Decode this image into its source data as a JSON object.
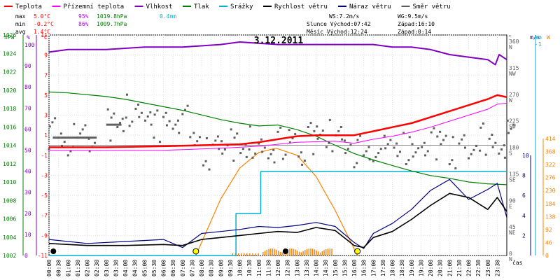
{
  "chart_data": {
    "type": "line",
    "title": "3.12.2011",
    "legend": [
      {
        "key": "temp",
        "label": "Teplota",
        "color": "#ff0000"
      },
      {
        "key": "feels",
        "label": "Přízemní teplota",
        "color": "#ff00ff"
      },
      {
        "key": "hum",
        "label": "Vlhkost",
        "color": "#8000c0"
      },
      {
        "key": "press",
        "label": "Tlak",
        "color": "#008000"
      },
      {
        "key": "rainacc",
        "label": "Srážky",
        "color": "#00b0d0"
      },
      {
        "key": "wind",
        "label": "Rychlost větru",
        "color": "#000000"
      },
      {
        "key": "gust",
        "label": "Náraz větru",
        "color": "#000080"
      },
      {
        "key": "dir",
        "label": "Směr větru",
        "color": "#606060"
      }
    ],
    "stats": {
      "max_label": "max",
      "max_temp": "5.0°C",
      "max_hum": "95%",
      "max_press": "1019.8hPa",
      "max_rain": "0.4mm",
      "min_label": "min",
      "min_temp": "-0.2°C",
      "min_hum": "86%",
      "min_press": "1009.7hPa",
      "avg_label": "avg",
      "avg_temp": "1.4°C",
      "ws": "WS:7.2m/s",
      "wg": "WG:9.5m/s",
      "sun_rise": "Slunce Východ:07:42",
      "sun_set": "Západ:16:10",
      "moon_rise": "Měsíc  Východ:12:24",
      "moon_set": "Západ:0:14"
    },
    "axis_units": {
      "hpa": "hPa",
      "pct": "%",
      "degc": "°C",
      "deg": "°",
      "ms": "m/s",
      "mm": "mm",
      "w": "W",
      "time": "čas"
    },
    "press_ticks": [
      1002,
      1004,
      1006,
      1008,
      1010,
      1012,
      1014,
      1016,
      1018,
      1020,
      1022,
      1024,
      1026
    ],
    "hum_ticks": [
      0,
      10,
      20,
      30,
      40,
      50,
      60,
      70,
      80,
      90,
      100
    ],
    "temp_ticks": [
      -11,
      -9,
      -7,
      -5,
      -3,
      -1,
      1,
      3,
      5,
      7,
      9,
      11
    ],
    "dir_ticks": [
      {
        "deg": 0,
        "v": "0",
        "c": "N"
      },
      {
        "deg": 45,
        "v": "45",
        "c": "NE"
      },
      {
        "deg": 90,
        "v": "90",
        "c": "E"
      },
      {
        "deg": 135,
        "v": "135",
        "c": "SE"
      },
      {
        "deg": 180,
        "v": "180",
        "c": "S"
      },
      {
        "deg": 225,
        "v": "225",
        "c": "SW"
      },
      {
        "deg": 270,
        "v": "270",
        "c": "W"
      },
      {
        "deg": 315,
        "v": "315",
        "c": "NW"
      },
      {
        "deg": 360,
        "v": "360",
        "c": "N"
      }
    ],
    "wind_ticks": [
      0,
      2,
      4,
      6,
      8,
      10
    ],
    "rain_ticks": [
      0,
      1
    ],
    "solar_ticks": [
      0,
      46,
      92,
      138,
      184,
      230,
      276,
      322,
      368,
      414
    ],
    "time_ticks": [
      "00:00",
      "00:30",
      "01:00",
      "01:30",
      "02:00",
      "02:30",
      "03:00",
      "03:30",
      "04:00",
      "04:30",
      "05:00",
      "05:30",
      "06:00",
      "06:30",
      "07:00",
      "07:30",
      "08:00",
      "08:30",
      "09:00",
      "09:30",
      "10:00",
      "10:30",
      "11:00",
      "11:30",
      "12:00",
      "12:30",
      "13:00",
      "13:30",
      "14:00",
      "14:30",
      "15:00",
      "15:30",
      "16:00",
      "16:30",
      "17:00",
      "17:30",
      "18:00",
      "18:30",
      "19:00",
      "19:30",
      "20:00",
      "20:30",
      "21:00",
      "21:30",
      "22:00",
      "22:30",
      "23:00",
      "23:30"
    ],
    "series": {
      "temp": {
        "x": [
          0,
          3,
          6,
          8,
          10,
          11,
          12,
          13,
          14,
          15,
          16,
          16.5,
          17,
          18,
          19,
          20,
          21,
          22,
          23,
          23.5,
          24
        ],
        "y": [
          -0.2,
          -0.2,
          -0.1,
          0.0,
          0.1,
          0.3,
          0.6,
          0.9,
          1.0,
          1.0,
          1.0,
          1.2,
          1.4,
          1.8,
          2.2,
          2.8,
          3.4,
          4.0,
          4.6,
          5.0,
          4.8
        ]
      },
      "feels": {
        "x": [
          0,
          6,
          9,
          11,
          13,
          15,
          16,
          17,
          18,
          19,
          20,
          21,
          22,
          23,
          23.5,
          24
        ],
        "y": [
          -0.5,
          -0.5,
          -0.3,
          -0.1,
          0.3,
          0.4,
          0.2,
          0.6,
          0.9,
          1.3,
          1.8,
          2.4,
          3.0,
          3.6,
          4.1,
          4.2
        ]
      },
      "hum": {
        "x": [
          0,
          1,
          3,
          5,
          7,
          9,
          10,
          12,
          14,
          16,
          17,
          18,
          19,
          20,
          21,
          22,
          23,
          23.4,
          23.6,
          24
        ],
        "y": [
          91,
          92,
          92,
          93,
          93,
          94,
          95,
          94,
          94,
          94,
          94,
          93,
          93,
          92,
          90,
          89,
          88,
          86,
          90,
          88
        ]
      },
      "press": {
        "x": [
          0,
          1,
          2,
          3,
          4,
          5,
          6,
          7,
          8,
          9,
          10,
          11,
          12,
          13,
          14,
          15,
          16,
          17,
          18,
          19,
          20,
          21,
          22,
          23,
          24
        ],
        "y": [
          1019.8,
          1019.7,
          1019.5,
          1019.3,
          1019.0,
          1018.6,
          1018.2,
          1017.8,
          1017.3,
          1016.8,
          1016.4,
          1016.1,
          1016.2,
          1015.7,
          1015.0,
          1014.0,
          1013.1,
          1012.4,
          1011.8,
          1011.2,
          1010.7,
          1010.4,
          1010.0,
          1009.8,
          1009.7
        ]
      },
      "rainacc": {
        "x": [
          0,
          9.8,
          9.8,
          11.1,
          11.1,
          24
        ],
        "y": [
          0,
          0,
          0.2,
          0.2,
          0.4,
          0.4
        ]
      },
      "wind": {
        "x": [
          0,
          2,
          4,
          6,
          7,
          8,
          9,
          10,
          11,
          12,
          13,
          14,
          15,
          16,
          16.5,
          17,
          18,
          19,
          20,
          21,
          22,
          23,
          23.5,
          24
        ],
        "y": [
          1.2,
          1.0,
          1.0,
          1.1,
          1.0,
          1.6,
          1.8,
          2.0,
          2.2,
          2.4,
          2.3,
          2.8,
          2.5,
          1.0,
          0.8,
          1.8,
          2.4,
          3.6,
          5.0,
          6.2,
          5.8,
          4.6,
          5.8,
          4.4
        ]
      },
      "gust": {
        "x": [
          0,
          2,
          4,
          6,
          7,
          8,
          9,
          10,
          11,
          12,
          13,
          14,
          15,
          16,
          16.5,
          17,
          18,
          19,
          20,
          21,
          22,
          23,
          23.5,
          24
        ],
        "y": [
          1.6,
          1.2,
          1.4,
          1.6,
          0.8,
          2.2,
          2.4,
          2.6,
          2.9,
          2.8,
          3.0,
          3.3,
          2.9,
          1.3,
          0.7,
          2.2,
          3.2,
          4.6,
          6.5,
          7.6,
          5.6,
          6.6,
          7.2,
          3.8
        ]
      },
      "solar": {
        "x": [
          7.7,
          9,
          10,
          11,
          11.9,
          13,
          14,
          15,
          16.17
        ],
        "y": [
          0,
          200,
          310,
          365,
          380,
          355,
          280,
          160,
          0
        ]
      },
      "dir": {
        "x": [
          0,
          0.5,
          1,
          1.5,
          2,
          3,
          3.5,
          4,
          4.5,
          5,
          5.5,
          6,
          6.5,
          7,
          7.5,
          8,
          8.5,
          9,
          9.5,
          10,
          10.5,
          11,
          11.5,
          12,
          12.5,
          13,
          13.5,
          14,
          14.5,
          15,
          15.5,
          16,
          16.5,
          17,
          17.5,
          18,
          18.5,
          19,
          19.5,
          20,
          20.5,
          21,
          21.5,
          22,
          22.5,
          23,
          23.5,
          24
        ],
        "y": [
          210,
          200,
          200,
          200,
          200,
          220,
          220,
          245,
          230,
          240,
          220,
          225,
          235,
          230,
          200,
          175,
          180,
          195,
          185,
          175,
          190,
          170,
          175,
          190,
          195,
          180,
          200,
          210,
          205,
          195,
          195,
          180,
          170,
          190,
          175,
          185,
          180,
          170,
          195,
          190,
          200,
          175,
          180,
          185,
          200,
          190,
          195,
          200
        ]
      },
      "events": {
        "sunrise": 7.7,
        "sunset": 16.17,
        "moonrise": 12.4,
        "moonset": 0.23
      }
    }
  }
}
